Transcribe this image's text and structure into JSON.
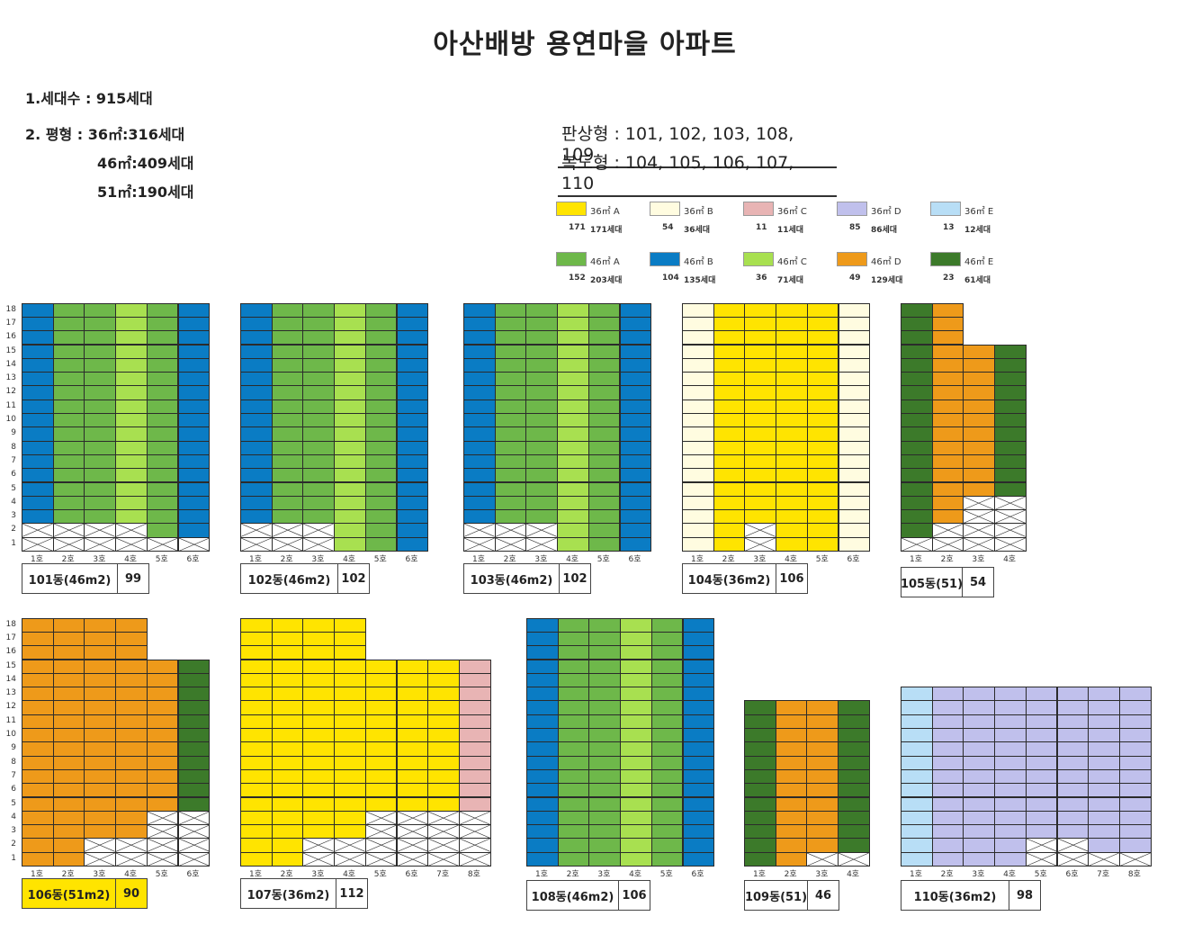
{
  "title": "아산배방 용연마을 아파트",
  "summary": {
    "households": "1.세대수 : 915세대",
    "size_36": "2. 평형 : 36㎡:316세대",
    "size_46": "46㎡:409세대",
    "size_51": "51㎡:190세대"
  },
  "types": {
    "plate": "판상형 : 101, 102, 103, 108, 109",
    "corridor": "복도형 : 104, 105, 106, 107, 110"
  },
  "colors": {
    "yellow": "#FFE400",
    "cream": "#FFFCE0",
    "pink": "#E8B4B4",
    "lavender": "#C0C0EC",
    "lightblue": "#B8DEF6",
    "green": "#6EB84A",
    "blue": "#0A7CC4",
    "lightgreen": "#A8E050",
    "orange": "#EE9A1A",
    "darkgreen": "#3C7A2A"
  },
  "legend": [
    {
      "name": "36㎡ A",
      "count_a": "171",
      "count_b": "171세대",
      "color": "yellow"
    },
    {
      "name": "36㎡ B",
      "count_a": "54",
      "count_b": "36세대",
      "color": "cream"
    },
    {
      "name": "36㎡ C",
      "count_a": "11",
      "count_b": "11세대",
      "color": "pink"
    },
    {
      "name": "36㎡ D",
      "count_a": "85",
      "count_b": "86세대",
      "color": "lavender"
    },
    {
      "name": "36㎡ E",
      "count_a": "13",
      "count_b": "12세대",
      "color": "lightblue"
    },
    {
      "name": "46㎡ A",
      "count_a": "152",
      "count_b": "203세대",
      "color": "green"
    },
    {
      "name": "46㎡ B",
      "count_a": "104",
      "count_b": "135세대",
      "color": "blue"
    },
    {
      "name": "46㎡ C",
      "count_a": "36",
      "count_b": "71세대",
      "color": "lightgreen"
    },
    {
      "name": "46㎡ D",
      "count_a": "49",
      "count_b": "129세대",
      "color": "orange"
    },
    {
      "name": "46㎡ E",
      "count_a": "23",
      "count_b": "61세대",
      "color": "darkgreen"
    }
  ],
  "floor_labels": [
    "1",
    "2",
    "3",
    "4",
    "5",
    "6",
    "7",
    "8",
    "9",
    "10",
    "11",
    "12",
    "13",
    "14",
    "15",
    "16",
    "17",
    "18"
  ],
  "buildings": [
    {
      "name": "101동(46m2)",
      "count": "99",
      "units": [
        "1호",
        "2호",
        "3호",
        "4호",
        "5호",
        "6호"
      ],
      "cols": [
        {
          "color": "blue",
          "top": 18,
          "empty": 2
        },
        {
          "color": "green",
          "top": 18,
          "empty": 2
        },
        {
          "color": "green",
          "top": 18,
          "empty": 2
        },
        {
          "color": "lightgreen",
          "top": 18,
          "empty": 2
        },
        {
          "color": "green",
          "top": 18,
          "empty": 1
        },
        {
          "color": "blue",
          "top": 18,
          "empty": 1
        }
      ]
    },
    {
      "name": "102동(46m2)",
      "count": "102",
      "units": [
        "1호",
        "2호",
        "3호",
        "4호",
        "5호",
        "6호"
      ],
      "cols": [
        {
          "color": "blue",
          "top": 18,
          "empty": 2
        },
        {
          "color": "green",
          "top": 18,
          "empty": 2
        },
        {
          "color": "green",
          "top": 18,
          "empty": 2
        },
        {
          "color": "lightgreen",
          "top": 18,
          "empty": 0
        },
        {
          "color": "green",
          "top": 18,
          "empty": 0
        },
        {
          "color": "blue",
          "top": 18,
          "empty": 0
        }
      ]
    },
    {
      "name": "103동(46m2)",
      "count": "102",
      "units": [
        "1호",
        "2호",
        "3호",
        "4호",
        "5호",
        "6호"
      ],
      "cols": [
        {
          "color": "blue",
          "top": 18,
          "empty": 2
        },
        {
          "color": "green",
          "top": 18,
          "empty": 2
        },
        {
          "color": "green",
          "top": 18,
          "empty": 2
        },
        {
          "color": "lightgreen",
          "top": 18,
          "empty": 0
        },
        {
          "color": "green",
          "top": 18,
          "empty": 0
        },
        {
          "color": "blue",
          "top": 18,
          "empty": 0
        }
      ]
    },
    {
      "name": "104동(36m2)",
      "count": "106",
      "units": [
        "1호",
        "2호",
        "3호",
        "4호",
        "5호",
        "6호"
      ],
      "cols": [
        {
          "color": "cream",
          "top": 18,
          "empty": 0
        },
        {
          "color": "yellow",
          "top": 18,
          "empty": 0
        },
        {
          "color": "yellow",
          "top": 18,
          "empty": 2
        },
        {
          "color": "yellow",
          "top": 18,
          "empty": 0
        },
        {
          "color": "yellow",
          "top": 18,
          "empty": 0
        },
        {
          "color": "cream",
          "top": 18,
          "empty": 0
        }
      ]
    },
    {
      "name": "105동(51)",
      "count": "54",
      "units": [
        "1호",
        "2호",
        "3호",
        "4호"
      ],
      "cols": [
        {
          "color": "darkgreen",
          "top": 18,
          "empty": 1
        },
        {
          "color": "orange",
          "top": 18,
          "empty": 2
        },
        {
          "color": "orange",
          "top": 15,
          "empty": 4
        },
        {
          "color": "darkgreen",
          "top": 15,
          "empty": 4
        }
      ]
    },
    {
      "name": "106동(51m2)",
      "count": "90",
      "highlight": true,
      "units": [
        "1호",
        "2호",
        "3호",
        "4호",
        "5호",
        "6호"
      ],
      "cols": [
        {
          "color": "orange",
          "top": 18,
          "empty": 0
        },
        {
          "color": "orange",
          "top": 18,
          "empty": 0
        },
        {
          "color": "orange",
          "top": 18,
          "empty": 2
        },
        {
          "color": "orange",
          "top": 18,
          "empty": 2
        },
        {
          "color": "orange",
          "top": 15,
          "empty": 4
        },
        {
          "color": "darkgreen",
          "top": 15,
          "empty": 4
        }
      ]
    },
    {
      "name": "107동(36m2)",
      "count": "112",
      "units": [
        "1호",
        "2호",
        "3호",
        "4호",
        "5호",
        "6호",
        "7호",
        "8호"
      ],
      "cols": [
        {
          "color": "yellow",
          "top": 18,
          "empty": 0
        },
        {
          "color": "yellow",
          "top": 18,
          "empty": 0
        },
        {
          "color": "yellow",
          "top": 18,
          "empty": 2
        },
        {
          "color": "yellow",
          "top": 18,
          "empty": 2
        },
        {
          "color": "yellow",
          "top": 15,
          "empty": 4
        },
        {
          "color": "yellow",
          "top": 15,
          "empty": 4
        },
        {
          "color": "yellow",
          "top": 15,
          "empty": 4
        },
        {
          "color": "pink",
          "top": 15,
          "empty": 4
        }
      ]
    },
    {
      "name": "108동(46m2)",
      "count": "106",
      "units": [
        "1호",
        "2호",
        "3호",
        "4호",
        "5호",
        "6호"
      ],
      "cols": [
        {
          "color": "blue",
          "top": 18,
          "empty": 0
        },
        {
          "color": "green",
          "top": 18,
          "empty": 0
        },
        {
          "color": "green",
          "top": 18,
          "empty": 0
        },
        {
          "color": "lightgreen",
          "top": 18,
          "empty": 0
        },
        {
          "color": "green",
          "top": 18,
          "empty": 0
        },
        {
          "color": "blue",
          "top": 18,
          "empty": 0
        }
      ]
    },
    {
      "name": "109동(51)",
      "count": "46",
      "units": [
        "1호",
        "2호",
        "3호",
        "4호"
      ],
      "cols": [
        {
          "color": "darkgreen",
          "top": 12,
          "empty": 0
        },
        {
          "color": "orange",
          "top": 12,
          "empty": 0
        },
        {
          "color": "orange",
          "top": 12,
          "empty": 1
        },
        {
          "color": "darkgreen",
          "top": 12,
          "empty": 1
        }
      ]
    },
    {
      "name": "110동(36m2)",
      "count": "98",
      "units": [
        "1호",
        "2호",
        "3호",
        "4호",
        "5호",
        "6호",
        "7호",
        "8호"
      ],
      "cols": [
        {
          "color": "lightblue",
          "top": 13,
          "empty": 0
        },
        {
          "color": "lavender",
          "top": 13,
          "empty": 0
        },
        {
          "color": "lavender",
          "top": 13,
          "empty": 0
        },
        {
          "color": "lavender",
          "top": 13,
          "empty": 0
        },
        {
          "color": "lavender",
          "top": 13,
          "empty": 2
        },
        {
          "color": "lavender",
          "top": 13,
          "empty": 2
        },
        {
          "color": "lavender",
          "top": 13,
          "empty": 1
        },
        {
          "color": "lavender",
          "top": 13,
          "empty": 1
        }
      ]
    }
  ]
}
